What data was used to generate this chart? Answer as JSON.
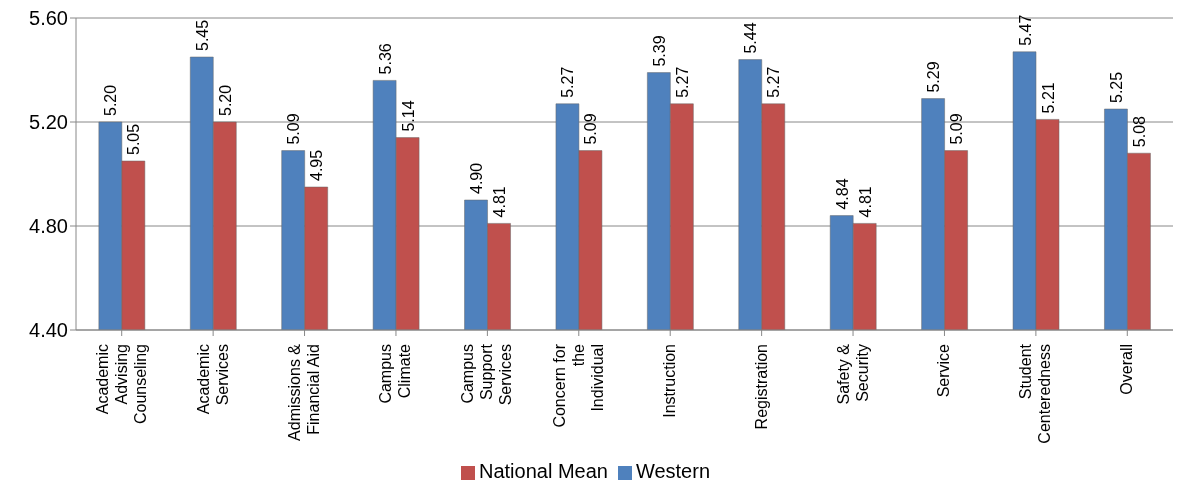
{
  "chart_data": {
    "type": "bar",
    "categories": [
      "Academic Advising Counseling",
      "Academic Services",
      "Admissions & Financial Aid",
      "Campus Climate",
      "Campus Support Services",
      "Concern for the Individual",
      "Instruction",
      "Registration",
      "Safety & Security",
      "Service",
      "Student Centeredness",
      "Overall"
    ],
    "series": [
      {
        "name": "Western",
        "color": "#4f81bd",
        "values": [
          5.2,
          5.45,
          5.09,
          5.36,
          4.9,
          5.27,
          5.39,
          5.44,
          4.84,
          5.29,
          5.47,
          5.25
        ],
        "value_labels": [
          "5.20",
          "5.45",
          "5.09",
          "5.36",
          "4.90",
          "5.27",
          "5.39",
          "5.44",
          "4.84",
          "5.29",
          "5.47",
          "5.25"
        ]
      },
      {
        "name": "National Mean",
        "color": "#c0504d",
        "values": [
          5.05,
          5.2,
          4.95,
          5.14,
          4.81,
          5.09,
          5.27,
          5.27,
          4.81,
          5.09,
          5.21,
          5.08
        ],
        "value_labels": [
          "5.05",
          "5.20",
          "4.95",
          "5.14",
          "4.81",
          "5.09",
          "5.27",
          "5.27",
          "4.81",
          "5.09",
          "5.21",
          "5.08"
        ]
      }
    ],
    "ylim": [
      4.4,
      5.6
    ],
    "yticks": [
      {
        "value": 4.4,
        "label": "4.40"
      },
      {
        "value": 4.8,
        "label": "4.80"
      },
      {
        "value": 5.2,
        "label": "5.20"
      },
      {
        "value": 5.6,
        "label": "5.60"
      }
    ],
    "grid": "y",
    "legend": "bottom"
  }
}
